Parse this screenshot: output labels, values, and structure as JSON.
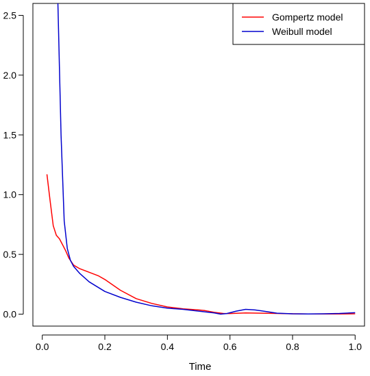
{
  "chart_data": {
    "type": "line",
    "title": "",
    "xlabel": "Time",
    "ylabel": "",
    "xlim": [
      -0.03,
      1.03
    ],
    "ylim": [
      -0.1,
      2.6
    ],
    "x_ticks": [
      0.0,
      0.2,
      0.4,
      0.6,
      0.8,
      1.0
    ],
    "x_tick_labels": [
      "0.0",
      "0.2",
      "0.4",
      "0.6",
      "0.8",
      "1.0"
    ],
    "y_ticks": [
      0.0,
      0.5,
      1.0,
      1.5,
      2.0,
      2.5
    ],
    "y_tick_labels": [
      "0.0",
      "0.5",
      "1.0",
      "1.5",
      "2.0",
      "2.5"
    ],
    "grid": false,
    "legend_position": "top-right",
    "series": [
      {
        "name": "Gompertz model",
        "color": "#ff0000",
        "x": [
          0.015,
          0.025,
          0.035,
          0.045,
          0.055,
          0.065,
          0.075,
          0.085,
          0.1,
          0.12,
          0.15,
          0.18,
          0.2,
          0.25,
          0.3,
          0.35,
          0.4,
          0.45,
          0.5,
          0.52,
          0.55,
          0.58,
          0.6,
          0.65,
          0.7,
          0.75,
          0.8,
          0.85,
          0.9,
          0.95,
          1.0
        ],
        "y": [
          1.17,
          0.95,
          0.74,
          0.66,
          0.63,
          0.58,
          0.53,
          0.47,
          0.41,
          0.38,
          0.35,
          0.32,
          0.29,
          0.2,
          0.13,
          0.09,
          0.06,
          0.045,
          0.035,
          0.03,
          0.015,
          0.005,
          0.005,
          0.01,
          0.008,
          0.006,
          0.003,
          0.002,
          0.002,
          0.002,
          0.003
        ]
      },
      {
        "name": "Weibull model",
        "color": "#0000cd",
        "x": [
          0.05,
          0.06,
          0.07,
          0.08,
          0.09,
          0.1,
          0.12,
          0.15,
          0.2,
          0.25,
          0.3,
          0.35,
          0.4,
          0.45,
          0.5,
          0.55,
          0.57,
          0.59,
          0.62,
          0.65,
          0.68,
          0.72,
          0.75,
          0.8,
          0.85,
          0.9,
          0.95,
          1.0
        ],
        "y": [
          2.6,
          1.5,
          0.78,
          0.55,
          0.45,
          0.4,
          0.34,
          0.27,
          0.19,
          0.14,
          0.1,
          0.07,
          0.05,
          0.04,
          0.025,
          0.01,
          0.0,
          0.005,
          0.025,
          0.04,
          0.035,
          0.02,
          0.008,
          0.003,
          0.002,
          0.003,
          0.006,
          0.012
        ]
      }
    ]
  }
}
